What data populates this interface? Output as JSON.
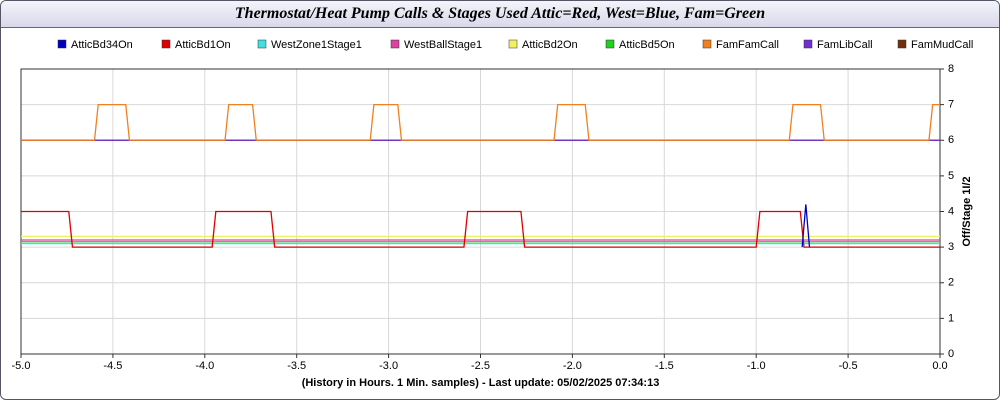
{
  "chart_data": {
    "type": "line",
    "title": "Thermostat/Heat Pump Calls & Stages Used Attic=Red, West=Blue, Fam=Green",
    "x_label": "(History in Hours. 1 Min. samples) - Last update: 05/02/2025 07:34:13",
    "y_label": "Off/Stage 1I/2",
    "xlim": [
      -5,
      0
    ],
    "xticks": [
      {
        "value": -5,
        "label": "-5.0"
      },
      -4.5,
      {
        "value": -4,
        "label": "-4.0"
      },
      -3.5,
      {
        "value": -3,
        "label": "-3.0"
      },
      -2.5,
      {
        "value": -2,
        "label": "-2.0"
      },
      -1.5,
      {
        "value": -1,
        "label": "-1.0"
      },
      -0.5,
      {
        "value": 0,
        "label": "0.0"
      }
    ],
    "ylim": [
      0,
      8
    ],
    "yticks": [
      0,
      1,
      2,
      3,
      4,
      5,
      6,
      7,
      8
    ],
    "grid": true,
    "legend": "top",
    "series": [
      {
        "name": "AtticBd34On",
        "color": "#0000c0",
        "x": [
          -0.75,
          -0.73,
          -0.71
        ],
        "values": [
          3,
          4.2,
          3
        ]
      },
      {
        "name": "AtticBd1On",
        "color": "#e00000",
        "x": [
          -5,
          -4.74,
          -4.72,
          -3.96,
          -3.94,
          -3.64,
          -3.62,
          -2.59,
          -2.57,
          -2.28,
          -2.26,
          -1.0,
          -0.98,
          -0.76,
          -0.74,
          0
        ],
        "values": [
          4,
          4,
          3,
          3,
          4,
          4,
          3,
          3,
          4,
          4,
          3,
          3,
          4,
          4,
          3,
          3
        ]
      },
      {
        "name": "WestZone1Stage1",
        "color": "#40e0e0",
        "x": [
          -5,
          0
        ],
        "values": [
          3.1,
          3.1
        ]
      },
      {
        "name": "WestBallStage1",
        "color": "#e040a0",
        "x": [
          -5,
          0
        ],
        "values": [
          3.2,
          3.2
        ]
      },
      {
        "name": "AtticBd2On",
        "color": "#f0f060",
        "x": [
          -5,
          0
        ],
        "values": [
          3.3,
          3.3
        ]
      },
      {
        "name": "AtticBd5On",
        "color": "#20d020",
        "x": [
          -5,
          0
        ],
        "values": [
          3.15,
          3.15
        ]
      },
      {
        "name": "FamFamCall",
        "color": "#f08020",
        "x": [
          -5,
          -4.6,
          -4.58,
          -4.43,
          -4.41,
          -3.89,
          -3.87,
          -3.74,
          -3.72,
          -3.1,
          -3.08,
          -2.95,
          -2.93,
          -2.1,
          -2.08,
          -1.93,
          -1.91,
          -0.82,
          -0.8,
          -0.65,
          -0.63,
          -0.06,
          -0.04,
          0
        ],
        "values": [
          6,
          6,
          7,
          7,
          6,
          6,
          7,
          7,
          6,
          6,
          7,
          7,
          6,
          6,
          7,
          7,
          6,
          6,
          7,
          7,
          6,
          6,
          7,
          7
        ]
      },
      {
        "name": "FamLibCall",
        "color": "#7030d0",
        "x": [
          -5,
          0
        ],
        "values": [
          6,
          6
        ]
      },
      {
        "name": "FamMudCall",
        "color": "#703010",
        "x": [
          -5,
          0
        ],
        "values": [
          6,
          6
        ]
      }
    ]
  }
}
